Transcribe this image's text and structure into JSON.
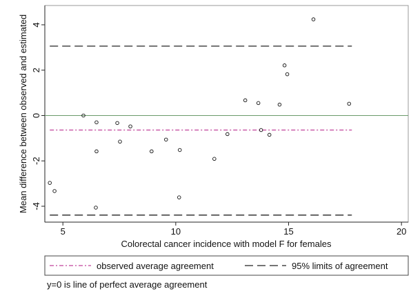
{
  "chart_data": {
    "type": "scatter",
    "y_label": "Mean difference between observed and estimated",
    "x_label": "Colorectal cancer incidence with model F for females",
    "x": [
      4.42,
      4.63,
      5.91,
      6.49,
      6.49,
      6.46,
      7.41,
      7.53,
      7.99,
      8.93,
      9.57,
      10.18,
      10.15,
      11.71,
      12.29,
      13.08,
      13.66,
      13.78,
      14.15,
      14.6,
      14.82,
      14.94,
      16.1,
      17.68
    ],
    "values": [
      -2.97,
      -3.33,
      0.0,
      -0.3,
      -1.58,
      -4.06,
      -0.33,
      -1.15,
      -0.48,
      -1.58,
      -1.06,
      -1.52,
      -3.61,
      -1.91,
      -0.82,
      0.67,
      0.55,
      -0.64,
      -0.85,
      0.48,
      2.21,
      1.82,
      4.24,
      0.52
    ],
    "lines": [
      {
        "name": "observed average agreement",
        "color": "#c0409a",
        "dash": "6 3 2 3",
        "values": [
          -0.64
        ]
      },
      {
        "name": "95% limits of agreement",
        "color": "#222222",
        "dash": "12 6",
        "values": [
          3.06,
          -4.39
        ]
      }
    ],
    "zero_line_color": "#6a9a6a",
    "note": "y=0 is line of perfect average agreement",
    "xlim": [
      4.2,
      20.3
    ],
    "xticks": [
      5,
      10,
      15,
      20
    ],
    "ylim": [
      -4.7,
      4.85
    ],
    "yticks": [
      -4,
      -2,
      0,
      2,
      4
    ]
  }
}
